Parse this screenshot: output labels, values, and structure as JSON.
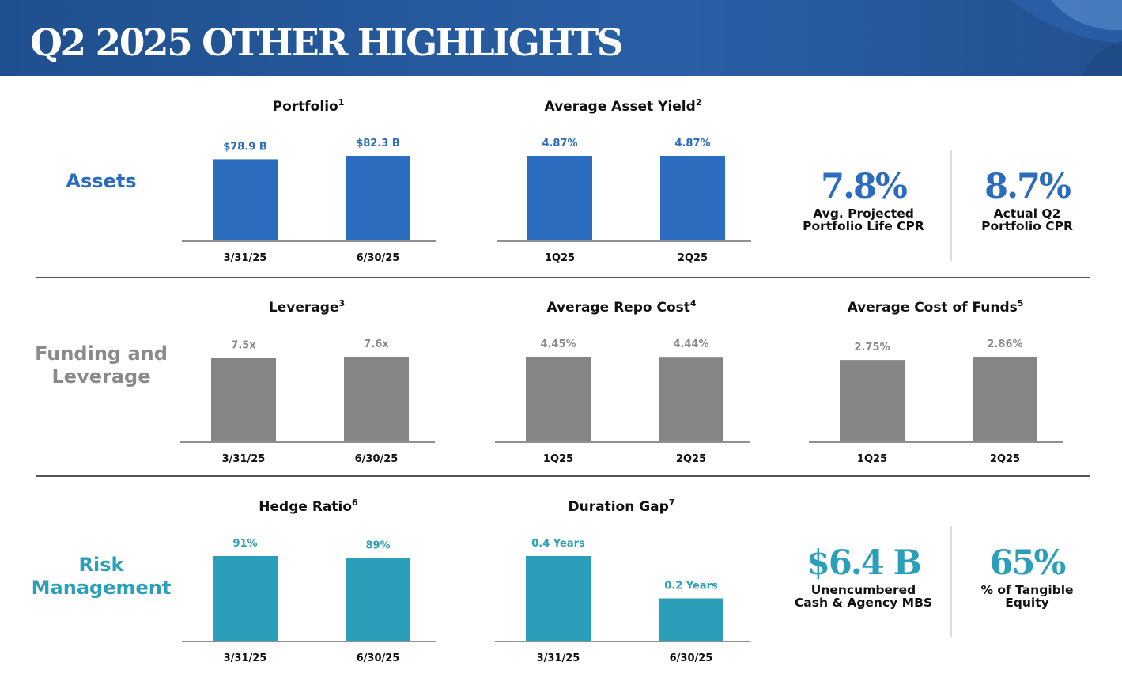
{
  "header": {
    "title": "Q2 2025 OTHER HIGHLIGHTS"
  },
  "colors": {
    "assets": "#2b6cbf",
    "funding": "#858585",
    "risk": "#2b9fba",
    "header_bg": "#1f4f8e",
    "funding_label": "#8a8a8a"
  },
  "rows": {
    "assets": {
      "label": "Assets"
    },
    "funding": {
      "label_line1": "Funding and",
      "label_line2": "Leverage"
    },
    "risk": {
      "label_line1": "Risk",
      "label_line2": "Management"
    }
  },
  "stats": {
    "projected_cpr": {
      "value": "7.8%",
      "label_line1": "Avg. Projected",
      "label_line2": "Portfolio Life CPR"
    },
    "actual_cpr": {
      "value": "8.7%",
      "label_line1": "Actual Q2",
      "label_line2": "Portfolio CPR"
    },
    "unencumbered": {
      "value": "$6.4 B",
      "label_line1": "Unencumbered",
      "label_line2": "Cash & Agency MBS"
    },
    "tangible_equity": {
      "value": "65%",
      "label_line1": "% of Tangible",
      "label_line2": "Equity"
    }
  },
  "chart_data": [
    {
      "id": "portfolio",
      "type": "bar",
      "title": "Portfolio",
      "footnote": "1",
      "categories": [
        "3/31/25",
        "6/30/25"
      ],
      "values": [
        78.9,
        82.3
      ],
      "labels": [
        "$78.9 B",
        "$82.3 B"
      ],
      "unit": "B",
      "color": "#2b6cbf",
      "label_color": "#2b6cbf"
    },
    {
      "id": "asset_yield",
      "type": "bar",
      "title": "Average Asset Yield",
      "footnote": "2",
      "categories": [
        "1Q25",
        "2Q25"
      ],
      "values": [
        4.87,
        4.87
      ],
      "labels": [
        "4.87%",
        "4.87%"
      ],
      "unit": "%",
      "color": "#2b6cbf",
      "label_color": "#2b6cbf"
    },
    {
      "id": "leverage",
      "type": "bar",
      "title": "Leverage",
      "footnote": "3",
      "categories": [
        "3/31/25",
        "6/30/25"
      ],
      "values": [
        7.5,
        7.6
      ],
      "labels": [
        "7.5x",
        "7.6x"
      ],
      "unit": "x",
      "color": "#858585",
      "label_color": "#8a8a8a"
    },
    {
      "id": "repo_cost",
      "type": "bar",
      "title": "Average Repo Cost",
      "footnote": "4",
      "categories": [
        "1Q25",
        "2Q25"
      ],
      "values": [
        4.45,
        4.44
      ],
      "labels": [
        "4.45%",
        "4.44%"
      ],
      "unit": "%",
      "color": "#858585",
      "label_color": "#8a8a8a"
    },
    {
      "id": "cost_of_funds",
      "type": "bar",
      "title": "Average Cost of Funds",
      "footnote": "5",
      "categories": [
        "1Q25",
        "2Q25"
      ],
      "values": [
        2.75,
        2.86
      ],
      "labels": [
        "2.75%",
        "2.86%"
      ],
      "unit": "%",
      "color": "#858585",
      "label_color": "#8a8a8a"
    },
    {
      "id": "hedge_ratio",
      "type": "bar",
      "title": "Hedge Ratio",
      "footnote": "6",
      "categories": [
        "3/31/25",
        "6/30/25"
      ],
      "values": [
        91,
        89
      ],
      "labels": [
        "91%",
        "89%"
      ],
      "unit": "%",
      "color": "#2b9fba",
      "label_color": "#2b9fba"
    },
    {
      "id": "duration_gap",
      "type": "bar",
      "title": "Duration Gap",
      "footnote": "7",
      "categories": [
        "3/31/25",
        "6/30/25"
      ],
      "values": [
        0.4,
        0.2
      ],
      "labels": [
        "0.4 Years",
        "0.2 Years"
      ],
      "unit": "Years",
      "color": "#2b9fba",
      "label_color": "#2b9fba"
    }
  ]
}
